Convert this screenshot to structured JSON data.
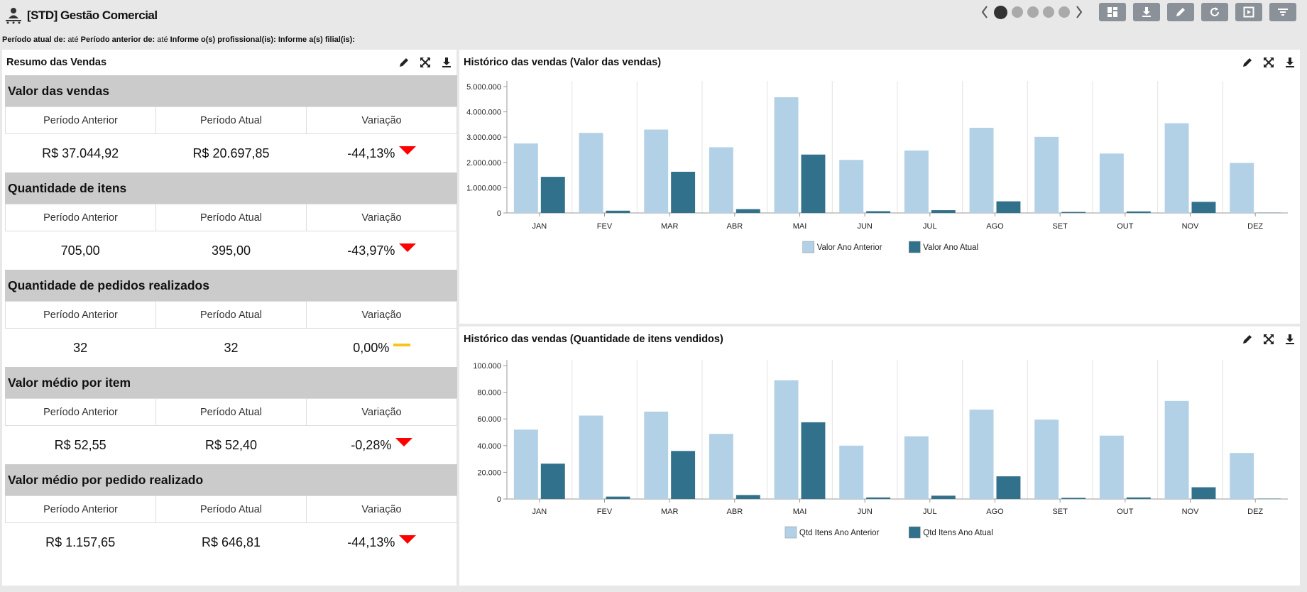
{
  "app": {
    "title": "[STD] Gestão Comercial",
    "toolbar_buttons": [
      "layout-icon",
      "download-icon",
      "edit-icon",
      "refresh-icon",
      "present-icon",
      "filter-icon"
    ],
    "pager": {
      "dots": 5,
      "active": 0
    }
  },
  "filters": {
    "periodo_atual_label": "Período atual de:",
    "periodo_atual_value": "até",
    "periodo_anterior_label": "Período anterior de:",
    "periodo_anterior_value": "até",
    "profissional_label": "Informe o(s) profissional(is):",
    "filial_label": "Informe a(s) filial(is):"
  },
  "resumo": {
    "title": "Resumo das Vendas",
    "col_anterior": "Período Anterior",
    "col_atual": "Período Atual",
    "col_variacao": "Variação",
    "sections": [
      {
        "title": "Valor das vendas",
        "anterior": "R$ 37.044,92",
        "atual": "R$ 20.697,85",
        "variacao": "-44,13%",
        "trend": "down"
      },
      {
        "title": "Quantidade de itens",
        "anterior": "705,00",
        "atual": "395,00",
        "variacao": "-43,97%",
        "trend": "down"
      },
      {
        "title": "Quantidade de pedidos realizados",
        "anterior": "32",
        "atual": "32",
        "variacao": "0,00%",
        "trend": "flat"
      },
      {
        "title": "Valor médio por item",
        "anterior": "R$ 52,55",
        "atual": "R$ 52,40",
        "variacao": "-0,28%",
        "trend": "down"
      },
      {
        "title": "Valor médio por pedido realizado",
        "anterior": "R$ 1.157,65",
        "atual": "R$ 646,81",
        "variacao": "-44,13%",
        "trend": "down"
      }
    ]
  },
  "chart_data": [
    {
      "type": "bar",
      "title": "Histórico das vendas (Valor das vendas)",
      "categories": [
        "JAN",
        "FEV",
        "MAR",
        "ABR",
        "MAI",
        "JUN",
        "JUL",
        "AGO",
        "SET",
        "OUT",
        "NOV",
        "DEZ"
      ],
      "ylim": [
        0,
        5000000
      ],
      "yticks": [
        "0",
        "1.000.000",
        "2.000.000",
        "3.000.000",
        "4.000.000",
        "5.000.000"
      ],
      "grid": "vertical",
      "legend": "bottom-center",
      "series": [
        {
          "name": "Valor Ano Anterior",
          "color": "#b3d1e6",
          "values": [
            2750000,
            3170000,
            3300000,
            2600000,
            4580000,
            2100000,
            2470000,
            3370000,
            3010000,
            2350000,
            3550000,
            1980000
          ]
        },
        {
          "name": "Valor Ano Atual",
          "color": "#32718c",
          "values": [
            1430000,
            90000,
            1630000,
            150000,
            2310000,
            70000,
            110000,
            460000,
            40000,
            60000,
            440000,
            10000
          ]
        }
      ]
    },
    {
      "type": "bar",
      "title": "Histórico das vendas (Quantidade de itens vendidos)",
      "categories": [
        "JAN",
        "FEV",
        "MAR",
        "ABR",
        "MAI",
        "JUN",
        "JUL",
        "AGO",
        "SET",
        "OUT",
        "NOV",
        "DEZ"
      ],
      "ylim": [
        0,
        100000
      ],
      "yticks": [
        "0",
        "20.000",
        "40.000",
        "60.000",
        "80.000",
        "100.000"
      ],
      "grid": "vertical",
      "legend": "bottom-center",
      "series": [
        {
          "name": "Qtd Itens Ano Anterior",
          "color": "#b3d1e6",
          "values": [
            52000,
            62500,
            65500,
            48800,
            89000,
            40000,
            47000,
            67000,
            59500,
            47500,
            73500,
            34500
          ]
        },
        {
          "name": "Qtd Itens Ano Atual",
          "color": "#32718c",
          "values": [
            26500,
            1800,
            36000,
            3000,
            57500,
            1200,
            2500,
            17000,
            900,
            1200,
            8800,
            300
          ]
        }
      ]
    }
  ]
}
